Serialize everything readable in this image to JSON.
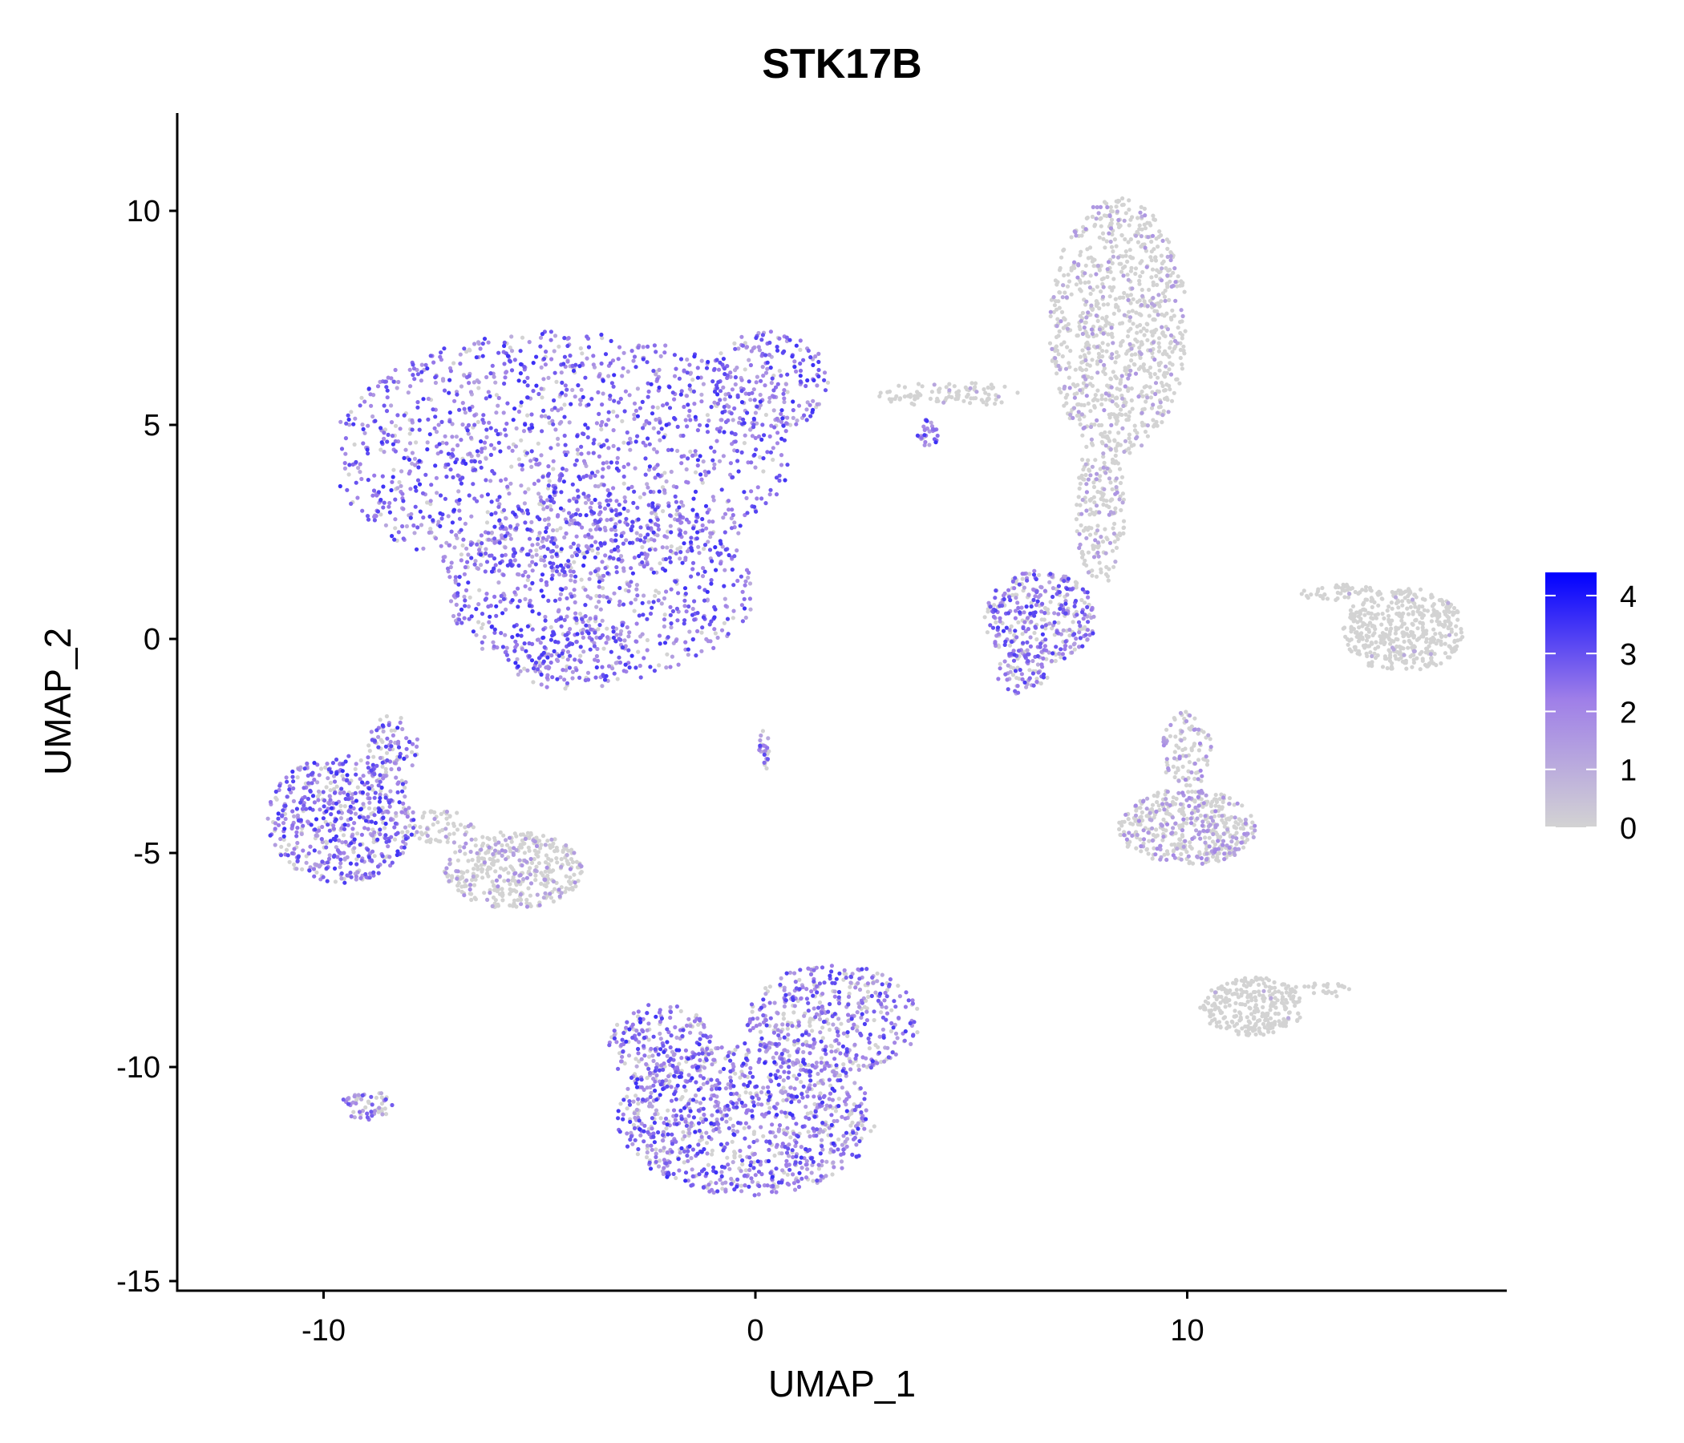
{
  "chart_data": {
    "type": "scatter",
    "title": "STK17B",
    "xlabel": "UMAP_1",
    "ylabel": "UMAP_2",
    "xlim": [
      -14,
      17.5
    ],
    "ylim": [
      -15.3,
      12.2
    ],
    "xticks": [
      -10,
      0,
      10
    ],
    "xtick_labels": [
      "-10",
      "0",
      "10"
    ],
    "yticks": [
      10,
      5,
      0,
      -5,
      -10,
      -15
    ],
    "ytick_labels": [
      "10",
      "5",
      "0",
      "-5",
      "-10",
      "-15"
    ],
    "grid": false,
    "color_scale": {
      "low": "#d3d3d3",
      "high": "#0000ff",
      "min": 0,
      "max": 4.4,
      "ticks": [
        4,
        3,
        2,
        1,
        0
      ],
      "tick_labels": [
        "4",
        "3",
        "2",
        "1",
        "0"
      ],
      "legend_position": "right"
    },
    "clusters": [
      {
        "cx": -4.5,
        "cy": 4.3,
        "rx": 5.3,
        "ry": 2.9,
        "n": 1400,
        "mean_expr": 1.6
      },
      {
        "cx": -3.6,
        "cy": 1.2,
        "rx": 3.6,
        "ry": 2.2,
        "n": 700,
        "mean_expr": 1.8
      },
      {
        "cx": -4.2,
        "cy": -0.3,
        "rx": 1.6,
        "ry": 0.9,
        "n": 150,
        "mean_expr": 1.8
      },
      {
        "cx": 0.3,
        "cy": 6.0,
        "rx": 1.4,
        "ry": 1.2,
        "n": 200,
        "mean_expr": 1.6
      },
      {
        "cx": 8.4,
        "cy": 7.3,
        "rx": 1.6,
        "ry": 3.0,
        "n": 900,
        "mean_expr": 0.35
      },
      {
        "cx": 8.0,
        "cy": 3.0,
        "rx": 0.6,
        "ry": 1.8,
        "n": 200,
        "mean_expr": 0.35
      },
      {
        "cx": 6.6,
        "cy": 0.5,
        "rx": 1.3,
        "ry": 1.1,
        "n": 350,
        "mean_expr": 1.3
      },
      {
        "cx": 6.2,
        "cy": -0.8,
        "rx": 0.6,
        "ry": 0.6,
        "n": 60,
        "mean_expr": 1.3
      },
      {
        "cx": 4.5,
        "cy": 5.7,
        "rx": 1.7,
        "ry": 0.3,
        "n": 90,
        "mean_expr": 0.15
      },
      {
        "cx": 4.0,
        "cy": 4.8,
        "rx": 0.25,
        "ry": 0.35,
        "n": 30,
        "mean_expr": 1.4
      },
      {
        "cx": 15.0,
        "cy": 0.2,
        "rx": 1.4,
        "ry": 1.0,
        "n": 450,
        "mean_expr": 0.05
      },
      {
        "cx": 13.5,
        "cy": 1.1,
        "rx": 1.0,
        "ry": 0.2,
        "n": 50,
        "mean_expr": 0.05
      },
      {
        "cx": 10.0,
        "cy": -4.4,
        "rx": 1.6,
        "ry": 0.9,
        "n": 450,
        "mean_expr": 0.55
      },
      {
        "cx": 10.0,
        "cy": -2.6,
        "rx": 0.6,
        "ry": 0.9,
        "n": 100,
        "mean_expr": 0.55
      },
      {
        "cx": 11.5,
        "cy": -8.6,
        "rx": 1.2,
        "ry": 0.7,
        "n": 280,
        "mean_expr": 0.05
      },
      {
        "cx": 13.0,
        "cy": -8.2,
        "rx": 0.8,
        "ry": 0.2,
        "n": 30,
        "mean_expr": 0.05
      },
      {
        "cx": -9.6,
        "cy": -4.2,
        "rx": 1.7,
        "ry": 1.5,
        "n": 550,
        "mean_expr": 1.4
      },
      {
        "cx": -8.4,
        "cy": -2.6,
        "rx": 0.6,
        "ry": 0.9,
        "n": 90,
        "mean_expr": 1.4
      },
      {
        "cx": -5.6,
        "cy": -5.4,
        "rx": 1.6,
        "ry": 0.9,
        "n": 400,
        "mean_expr": 0.45
      },
      {
        "cx": -7.3,
        "cy": -4.4,
        "rx": 0.8,
        "ry": 0.4,
        "n": 60,
        "mean_expr": 0.3
      },
      {
        "cx": -0.2,
        "cy": -11.2,
        "rx": 3.0,
        "ry": 1.8,
        "n": 1000,
        "mean_expr": 1.4
      },
      {
        "cx": 1.8,
        "cy": -8.9,
        "rx": 2.0,
        "ry": 1.3,
        "n": 450,
        "mean_expr": 1.3
      },
      {
        "cx": -2.2,
        "cy": -9.5,
        "rx": 1.2,
        "ry": 1.0,
        "n": 200,
        "mean_expr": 1.4
      },
      {
        "cx": -9.0,
        "cy": -10.9,
        "rx": 0.6,
        "ry": 0.35,
        "n": 60,
        "mean_expr": 1.1
      },
      {
        "cx": 0.2,
        "cy": -2.6,
        "rx": 0.12,
        "ry": 0.5,
        "n": 25,
        "mean_expr": 1.2
      }
    ]
  }
}
